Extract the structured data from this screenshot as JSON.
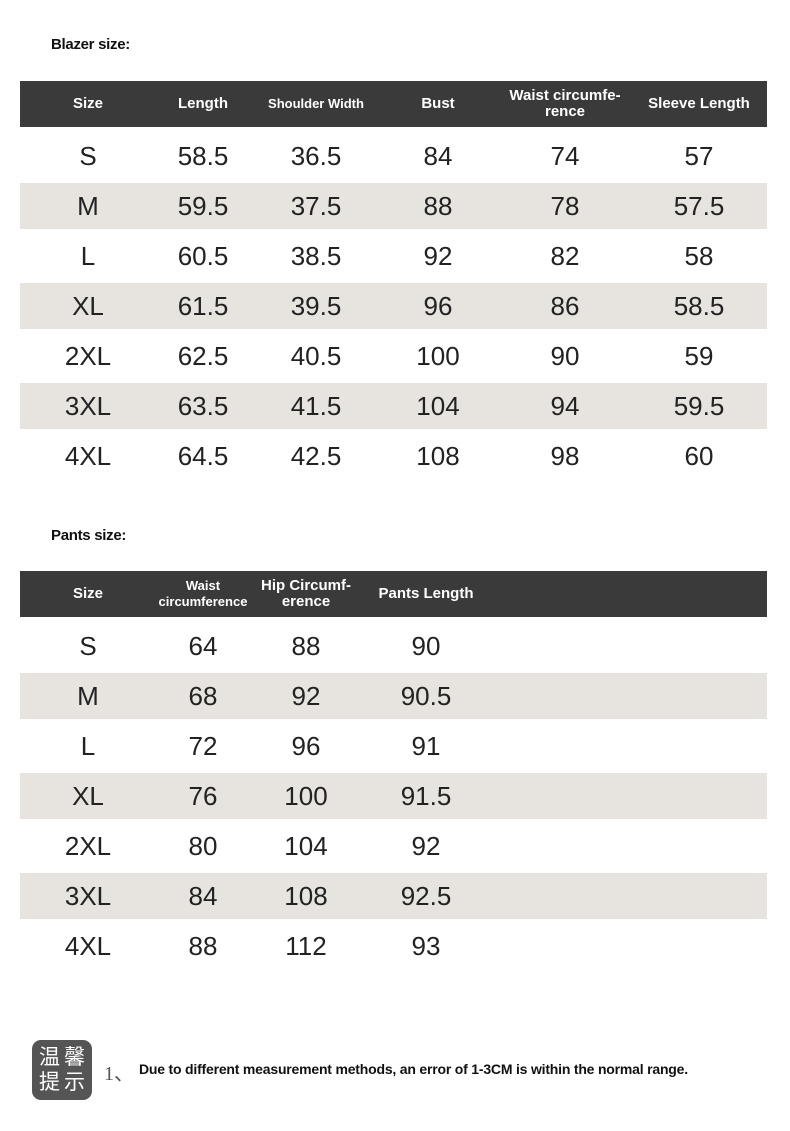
{
  "blazer": {
    "title": "Blazer size:",
    "headers": [
      "Size",
      "Length",
      "Shoulder Width",
      "Bust",
      "Waist circumfe-\nrence",
      "Sleeve Length"
    ],
    "rows": [
      [
        "S",
        "58.5",
        "36.5",
        "84",
        "74",
        "57"
      ],
      [
        "M",
        "59.5",
        "37.5",
        "88",
        "78",
        "57.5"
      ],
      [
        "L",
        "60.5",
        "38.5",
        "92",
        "82",
        "58"
      ],
      [
        "XL",
        "61.5",
        "39.5",
        "96",
        "86",
        "58.5"
      ],
      [
        "2XL",
        "62.5",
        "40.5",
        "100",
        "90",
        "59"
      ],
      [
        "3XL",
        "63.5",
        "41.5",
        "104",
        "94",
        "59.5"
      ],
      [
        "4XL",
        "64.5",
        "42.5",
        "108",
        "98",
        "60"
      ]
    ]
  },
  "pants": {
    "title": "Pants size:",
    "headers": [
      "Size",
      "Waist\ncircumference",
      "Hip Circumf-\nerence",
      "Pants Length"
    ],
    "rows": [
      [
        "S",
        "64",
        "88",
        "90"
      ],
      [
        "M",
        "68",
        "92",
        "90.5"
      ],
      [
        "L",
        "72",
        "96",
        "91"
      ],
      [
        "XL",
        "76",
        "100",
        "91.5"
      ],
      [
        "2XL",
        "80",
        "104",
        "92"
      ],
      [
        "3XL",
        "84",
        "108",
        "92.5"
      ],
      [
        "4XL",
        "88",
        "112",
        "93"
      ]
    ]
  },
  "tip": {
    "badge": [
      "温",
      "馨",
      "提",
      "示"
    ],
    "number": "1、",
    "text": "Due to different measurement methods, an error of 1-3CM is within the normal range."
  },
  "colors": {
    "header_bg": "#3a3a3a",
    "alt_row_bg": "#e7e4e0",
    "badge_bg": "#555555"
  }
}
